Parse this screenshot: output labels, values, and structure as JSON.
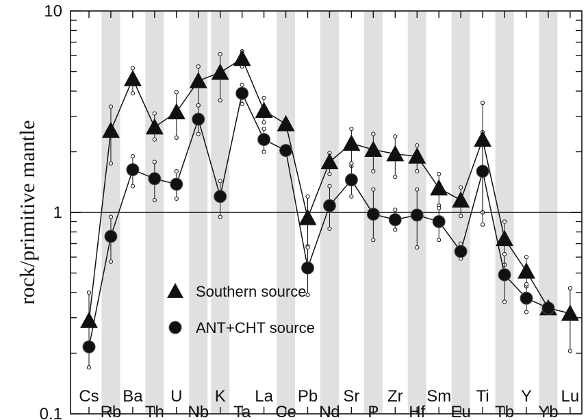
{
  "chart_data": {
    "type": "line",
    "ylabel": "rock/primitive mantle",
    "yscale": "log",
    "ylim": [
      0.1,
      10
    ],
    "y_ticks": [
      "0.1",
      "1",
      "10"
    ],
    "reference_line": 1,
    "categories": [
      "Cs",
      "Rb",
      "Ba",
      "Th",
      "U",
      "Nb",
      "K",
      "Ta",
      "La",
      "Ce",
      "Pb",
      "Nd",
      "Sr",
      "P",
      "Zr",
      "Hf",
      "Sm",
      "Eu",
      "Ti",
      "Tb",
      "Y",
      "Yb",
      "Lu"
    ],
    "shaded_categories": [
      "Rb",
      "Th",
      "Nb",
      "K",
      "Ce",
      "Nd",
      "P",
      "Hf",
      "Eu",
      "Tb",
      "Yb"
    ],
    "legend_position": "bottom-left",
    "series": [
      {
        "name": "Southern source",
        "marker": "triangle",
        "values": [
          0.29,
          2.55,
          4.6,
          2.65,
          3.15,
          4.5,
          4.95,
          5.8,
          3.2,
          2.75,
          0.94,
          1.78,
          2.2,
          2.05,
          1.95,
          1.9,
          1.32,
          1.15,
          2.3,
          0.74,
          0.51,
          0.335,
          0.315
        ],
        "err_low": [
          null,
          1.75,
          3.9,
          2.3,
          2.35,
          3.4,
          3.6,
          5.3,
          2.8,
          null,
          0.68,
          1.55,
          1.7,
          1.6,
          1.5,
          1.6,
          1.08,
          0.96,
          1.0,
          0.55,
          0.43,
          null,
          0.205
        ],
        "err_high": [
          null,
          3.35,
          5.2,
          3.1,
          3.95,
          5.3,
          6.1,
          6.3,
          3.7,
          null,
          1.2,
          1.97,
          2.6,
          2.45,
          2.38,
          2.15,
          1.55,
          1.33,
          3.5,
          0.9,
          0.6,
          null,
          0.42
        ]
      },
      {
        "name": "ANT+CHT source",
        "marker": "circle",
        "values": [
          0.215,
          0.76,
          1.63,
          1.47,
          1.38,
          2.9,
          1.2,
          3.9,
          2.3,
          2.03,
          0.53,
          1.08,
          1.45,
          0.98,
          0.92,
          0.97,
          0.9,
          0.64,
          1.6,
          0.49,
          0.375,
          0.335,
          null
        ],
        "err_low": [
          0.17,
          0.57,
          1.35,
          1.15,
          1.17,
          2.45,
          0.95,
          3.45,
          2.0,
          null,
          0.39,
          0.83,
          1.2,
          0.73,
          0.82,
          0.67,
          0.73,
          0.59,
          0.87,
          0.36,
          0.32,
          null,
          null
        ],
        "err_high": [
          0.4,
          0.95,
          1.9,
          1.78,
          1.6,
          3.4,
          1.43,
          4.3,
          2.6,
          null,
          0.67,
          1.35,
          1.75,
          1.3,
          1.03,
          1.3,
          1.05,
          0.7,
          2.5,
          0.62,
          0.44,
          null,
          null
        ]
      }
    ]
  },
  "colors": {
    "axis": "#111111",
    "shade": "#e0e0e2",
    "marker": "#111111",
    "endcap": "#ffffff"
  }
}
